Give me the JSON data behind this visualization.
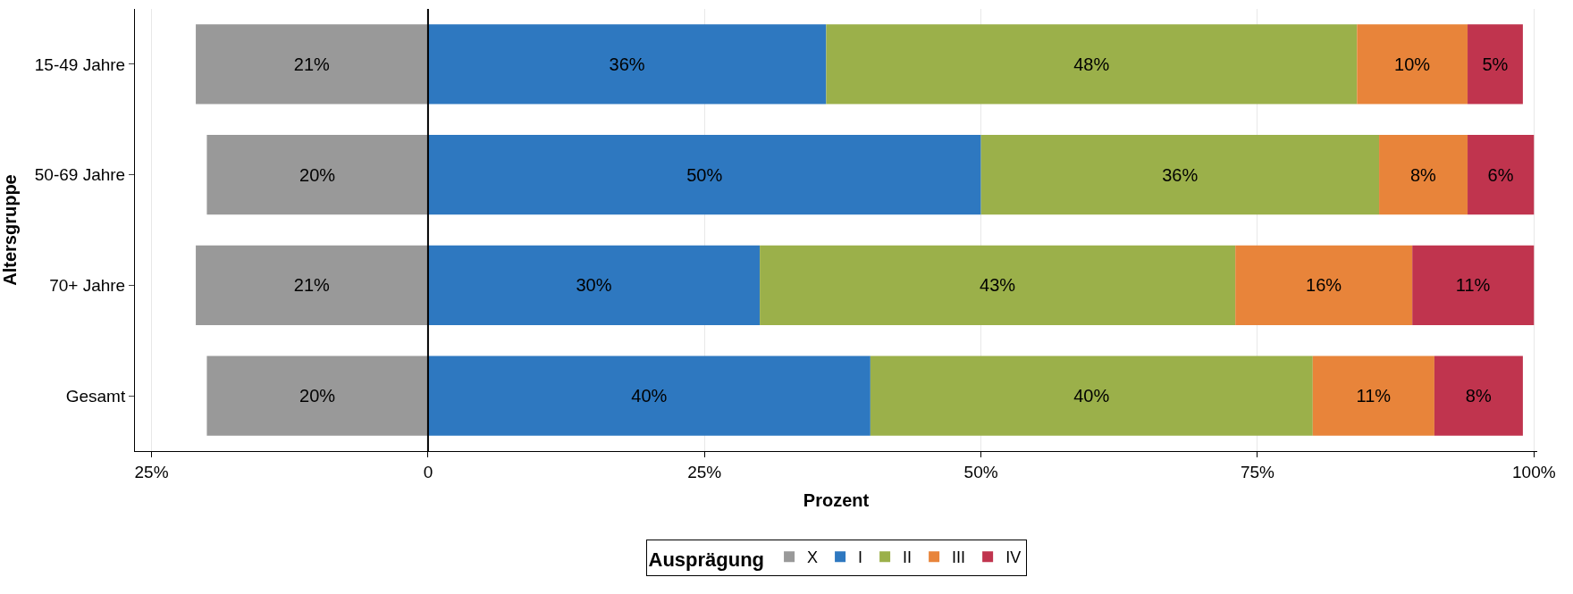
{
  "chart_data": {
    "type": "bar",
    "orientation": "horizontal",
    "xlabel": "Prozent",
    "ylabel": "Altersgruppe",
    "legend_title": "Ausprägung",
    "legend": "bottom",
    "grid": "x",
    "categories": [
      "15-49 Jahre",
      "50-69 Jahre",
      "70+ Jahre",
      "Gesamt"
    ],
    "xlim": [
      -26.5,
      100.3
    ],
    "xticks": [
      {
        "value": -25,
        "label": "25%"
      },
      0,
      {
        "value": 25,
        "label": "25%"
      },
      {
        "value": 50,
        "label": "50%"
      },
      {
        "value": 75,
        "label": "75%"
      },
      {
        "value": 100,
        "label": "100%"
      }
    ],
    "ref_lines": [
      {
        "axis": "x",
        "value": 0,
        "color": "#000000"
      }
    ],
    "series": [
      {
        "name": "X",
        "color": "#999999",
        "base": [
          -21,
          -20,
          -21,
          -20
        ],
        "values": [
          21,
          20,
          21,
          20
        ],
        "value_labels": [
          "21%",
          "20%",
          "21%",
          "20%"
        ]
      },
      {
        "name": "I",
        "color": "#2e78c0",
        "base": [
          0,
          0,
          0,
          0
        ],
        "values": [
          36,
          50,
          30,
          40
        ],
        "value_labels": [
          "36%",
          "50%",
          "30%",
          "40%"
        ]
      },
      {
        "name": "II",
        "color": "#9bb04a",
        "base": [
          36,
          50,
          30,
          40
        ],
        "values": [
          48,
          36,
          43,
          40
        ],
        "value_labels": [
          "48%",
          "36%",
          "43%",
          "40%"
        ]
      },
      {
        "name": "III",
        "color": "#e8843a",
        "base": [
          84,
          86,
          73,
          80
        ],
        "values": [
          10,
          8,
          16,
          11
        ],
        "value_labels": [
          "10%",
          "8%",
          "16%",
          "11%"
        ]
      },
      {
        "name": "IV",
        "color": "#c0344e",
        "base": [
          94,
          94,
          89,
          91
        ],
        "values": [
          5,
          6,
          11,
          8
        ],
        "value_labels": [
          "5%",
          "6%",
          "11%",
          "8%"
        ]
      }
    ]
  }
}
